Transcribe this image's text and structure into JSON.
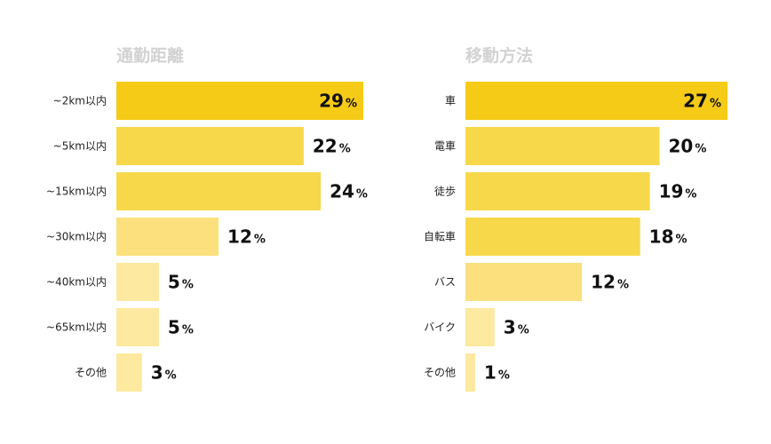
{
  "chart_data": [
    {
      "type": "bar",
      "orientation": "horizontal",
      "title": "通勤距離",
      "categories": [
        "~2km以内",
        "~5km以内",
        "~15km以内",
        "~30km以内",
        "~40km以内",
        "~65km以内",
        "その他"
      ],
      "values": [
        29,
        22,
        24,
        12,
        5,
        5,
        3
      ],
      "unit": "%",
      "colors": [
        "#f5cb17",
        "#f7d84a",
        "#f7d84a",
        "#fbe07d",
        "#fde99f",
        "#fde99f",
        "#fde99f"
      ],
      "xlim": [
        0,
        29
      ],
      "grid": false,
      "legend": "none"
    },
    {
      "type": "bar",
      "orientation": "horizontal",
      "title": "移動方法",
      "categories": [
        "車",
        "電車",
        "徒歩",
        "自転車",
        "バス",
        "バイク",
        "その他"
      ],
      "values": [
        27,
        20,
        19,
        18,
        12,
        3,
        1
      ],
      "unit": "%",
      "colors": [
        "#f5cb17",
        "#f7d84a",
        "#f7d84a",
        "#f7d84a",
        "#fbe07d",
        "#fde99f",
        "#fde99f"
      ],
      "xlim": [
        0,
        27
      ],
      "grid": false,
      "legend": "none"
    }
  ]
}
